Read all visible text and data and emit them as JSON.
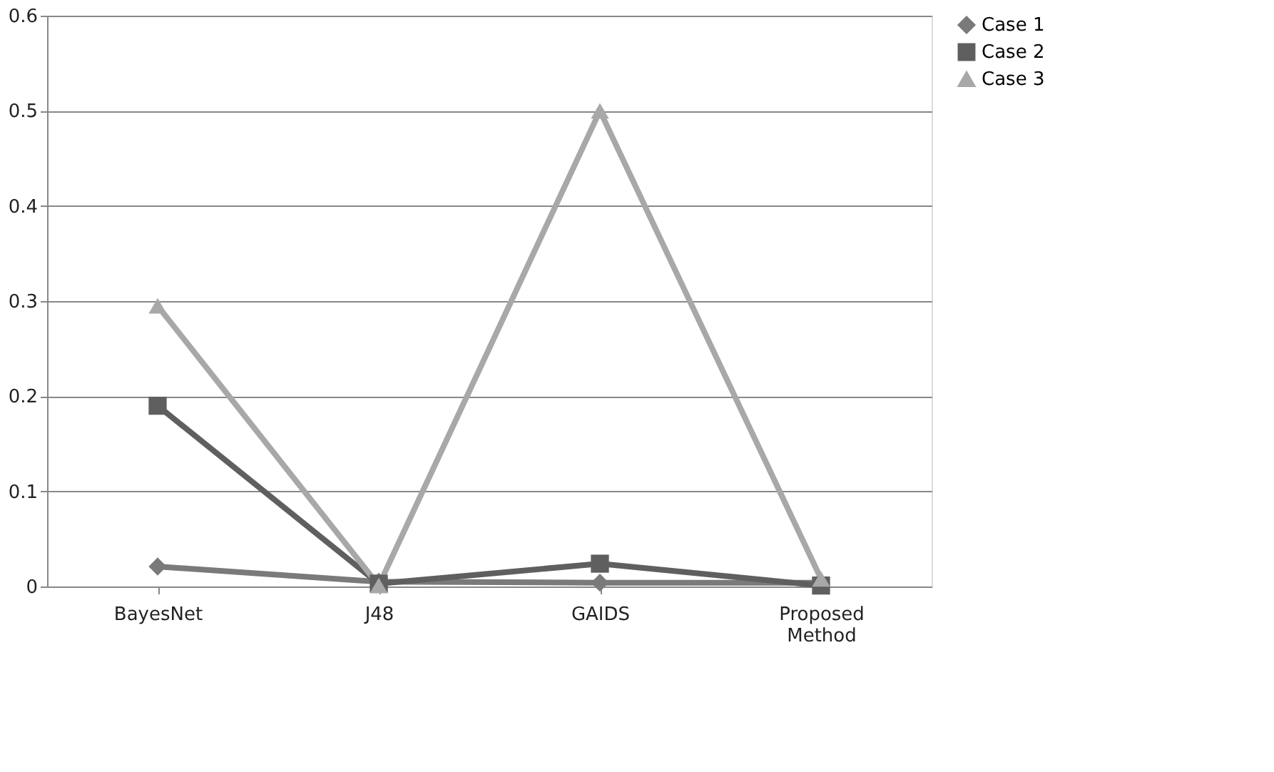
{
  "chart_data": {
    "type": "line",
    "categories": [
      "BayesNet",
      "J48",
      "GAIDS",
      "Proposed Method"
    ],
    "series": [
      {
        "name": "Case 1",
        "color": "#7a7a7a",
        "marker": "diamond",
        "values": [
          0.021,
          0.005,
          0.004,
          0.004
        ]
      },
      {
        "name": "Case 2",
        "color": "#5f5f5f",
        "marker": "square",
        "values": [
          0.19,
          0.003,
          0.024,
          0.001
        ]
      },
      {
        "name": "Case 3",
        "color": "#a8a8a8",
        "marker": "triangle",
        "values": [
          0.295,
          0.001,
          0.5,
          0.008
        ]
      }
    ],
    "ylim": [
      0,
      0.6
    ],
    "yticks": [
      0,
      0.1,
      0.2,
      0.3,
      0.4,
      0.5,
      0.6
    ],
    "grid": "y",
    "legend": "right",
    "line_style": "solid"
  }
}
